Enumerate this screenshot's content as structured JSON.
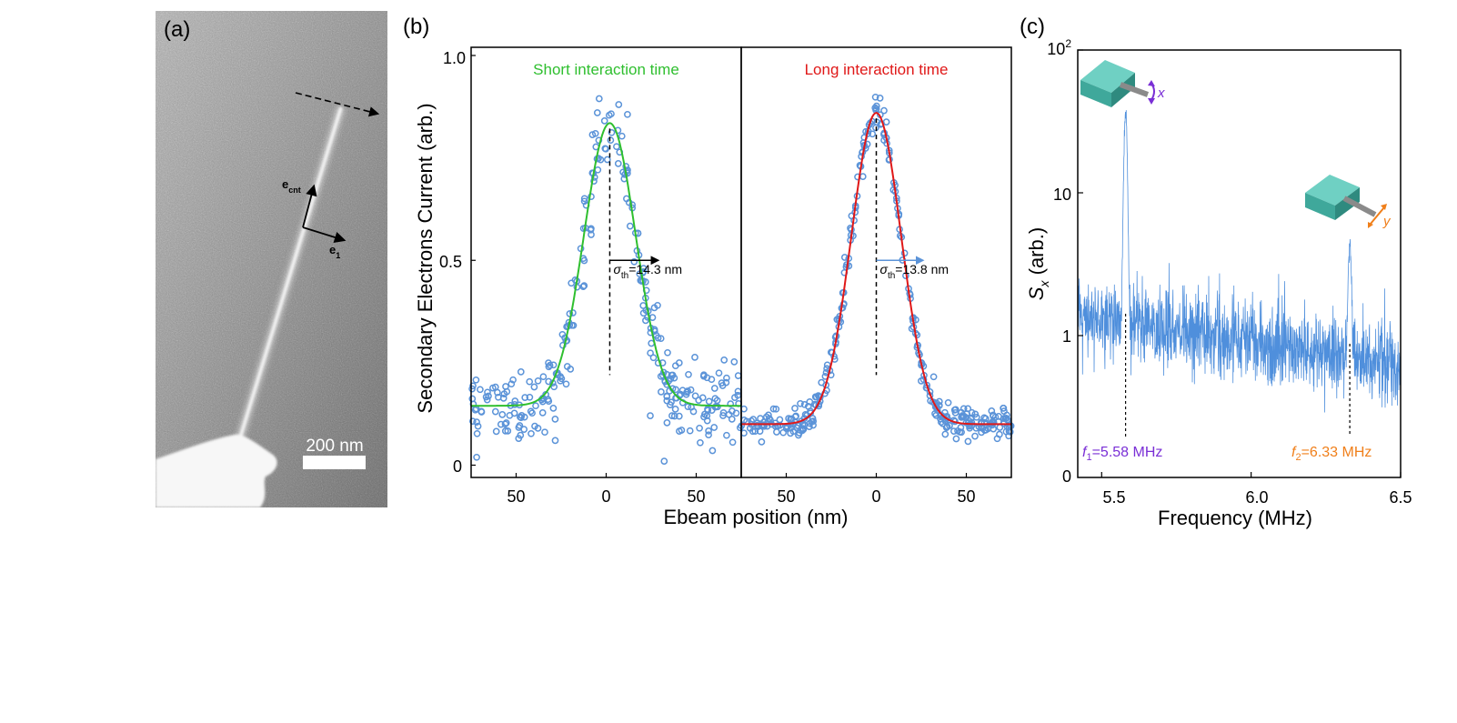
{
  "panel_a": {
    "label": "(a)",
    "scale_bar_label": "200 nm",
    "axis_e_cnt": {
      "base": "e",
      "sub": "cnt"
    },
    "axis_e_1": {
      "base": "e",
      "sub": "1"
    }
  },
  "panel_b": {
    "label": "(b)",
    "xlabel": "Ebeam  position (nm)",
    "ylabel": "Secondary Electrons Current (arb.)",
    "yticks": [
      "0",
      "0.5",
      "1.0"
    ],
    "xticks": [
      "50",
      "0",
      "50"
    ]
  },
  "panel_c": {
    "label": "(c)",
    "ylabel": {
      "base": "S",
      "sub": "x",
      "rest": " (arb.)"
    },
    "yticks": {
      "top": {
        "base": "10",
        "sup": "2"
      },
      "mid": "10",
      "low": "1",
      "bottom": "0"
    },
    "xlabel": "Frequency (MHz)",
    "xticks": [
      "5.5",
      "6.0",
      "6.5"
    ],
    "peak1": {
      "base": "f",
      "sub": "1",
      "rest": "=5.58 MHz"
    },
    "peak2": {
      "base": "f",
      "sub": "2",
      "rest": "=6.33 MHz"
    },
    "mode_x": "x",
    "mode_y": "y"
  },
  "colors": {
    "data": "#5b93d8",
    "fit_short": "#2fbf2f",
    "fit_long": "#e01818",
    "peak1": "#7a2fd6",
    "peak2": "#f07f1a",
    "spectrum": "#4f8fdc"
  },
  "chart_data": [
    {
      "type": "scatter",
      "title": "Short interaction time",
      "xlabel": "Ebeam  position (nm)",
      "ylabel": "Secondary Electrons Current (arb.)",
      "xlim": [
        -75,
        75
      ],
      "ylim": [
        -0.03,
        1.02
      ],
      "fit": {
        "model": "gaussian",
        "amplitude": 0.69,
        "center": 2,
        "sigma": 14.3,
        "offset": 0.145
      },
      "annotation": {
        "base": "σ",
        "sub": "th",
        "rest": "=14.3 nm"
      },
      "noise": 0.045,
      "n_points": 300
    },
    {
      "type": "scatter",
      "title": "Long interaction time",
      "xlabel": "Ebeam  position (nm)",
      "ylabel": "Secondary Electrons Current (arb.)",
      "xlim": [
        -75,
        75
      ],
      "ylim": [
        -0.03,
        1.02
      ],
      "fit": {
        "model": "gaussian",
        "amplitude": 0.76,
        "center": 0,
        "sigma": 13.8,
        "offset": 0.1
      },
      "annotation": {
        "base": "σ",
        "sub": "th",
        "rest": "=13.8 nm"
      },
      "noise": 0.018,
      "n_points": 340
    },
    {
      "type": "line",
      "title": "",
      "xlabel": "Frequency (MHz)",
      "ylabel": "S_x (arb.)",
      "xlim": [
        5.42,
        6.5
      ],
      "yscale": "log",
      "ylim": [
        0.1,
        100
      ],
      "peaks": [
        {
          "freq": 5.58,
          "height": 42,
          "label": "f1=5.58 MHz"
        },
        {
          "freq": 6.33,
          "height": 4.8,
          "label": "f2=6.33 MHz"
        }
      ],
      "baseline": [
        {
          "freq": 5.42,
          "level": 1.3
        },
        {
          "freq": 6.5,
          "level": 0.6
        }
      ]
    }
  ]
}
